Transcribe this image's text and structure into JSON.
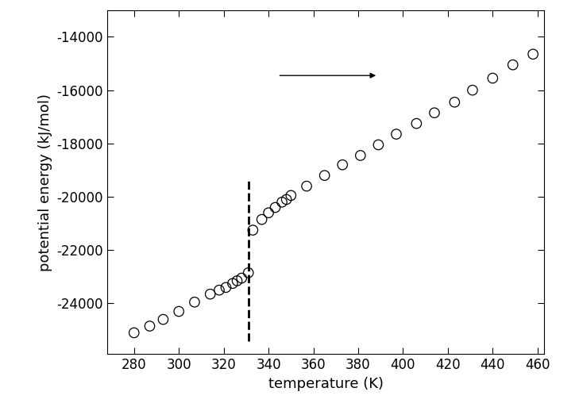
{
  "chart_data": {
    "type": "scatter",
    "x_label": "temperature (K)",
    "y_label": "potential energy (kJ/mol)",
    "x": [
      280,
      287,
      293,
      300,
      307,
      314,
      318,
      321,
      324,
      326,
      328,
      331,
      333,
      337,
      340,
      343,
      346,
      348,
      350,
      357,
      365,
      373,
      381,
      389,
      397,
      406,
      414,
      423,
      431,
      440,
      449,
      458
    ],
    "values": [
      -25100,
      -24850,
      -24600,
      -24300,
      -23950,
      -23650,
      -23500,
      -23400,
      -23250,
      -23150,
      -23050,
      -22850,
      -21250,
      -20850,
      -20600,
      -20400,
      -20200,
      -20100,
      -19950,
      -19600,
      -19200,
      -18800,
      -18450,
      -18050,
      -17650,
      -17250,
      -16850,
      -16450,
      -16000,
      -15550,
      -15050,
      -14650
    ],
    "color": "#000000",
    "marker": "circle",
    "transition": {
      "x": 331,
      "y": [
        -25400,
        -19400
      ],
      "line_style": "dashed"
    },
    "xlim": [
      268,
      463
    ],
    "xticks": [
      280,
      300,
      320,
      340,
      360,
      380,
      400,
      420,
      440,
      460
    ],
    "ylim": [
      -25900,
      -13000
    ],
    "yticks": [
      -24000,
      -22000,
      -20000,
      -18000,
      -16000,
      -14000
    ],
    "grid": false
  }
}
